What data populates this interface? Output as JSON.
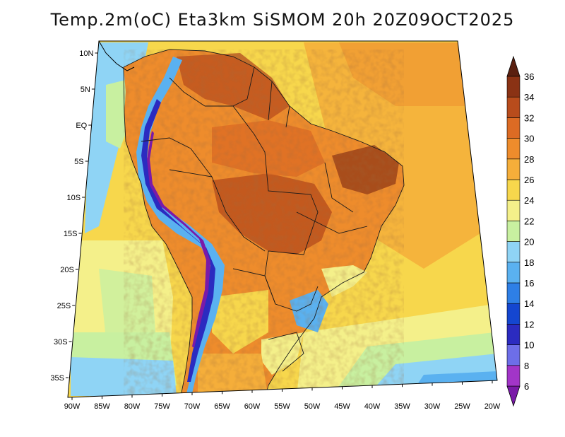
{
  "title": "Temp.2m(oC) Eta3km SiSMOM 20h 20Z09OCT2025",
  "map": {
    "lat_labels": [
      "10N",
      "5N",
      "EQ",
      "5S",
      "10S",
      "15S",
      "20S",
      "25S",
      "30S",
      "35S"
    ],
    "lon_labels": [
      "90W",
      "85W",
      "80W",
      "75W",
      "70W",
      "65W",
      "60W",
      "55W",
      "50W",
      "45W",
      "40W",
      "35W",
      "30W",
      "25W",
      "20W"
    ]
  },
  "colorbar": {
    "levels": [
      "6",
      "8",
      "10",
      "12",
      "14",
      "16",
      "18",
      "20",
      "22",
      "24",
      "26",
      "28",
      "30",
      "32",
      "34",
      "36"
    ],
    "colors": [
      "#7a1aa8",
      "#a235c8",
      "#6d6ee8",
      "#2b2bc0",
      "#1446d0",
      "#2e7fe6",
      "#5ab1f0",
      "#8fd4f5",
      "#c8f0a0",
      "#f4f08a",
      "#f7d74c",
      "#f5ae3a",
      "#ee8c2c",
      "#dc6b24",
      "#b84c1c",
      "#8a3214",
      "#5a2010"
    ]
  }
}
